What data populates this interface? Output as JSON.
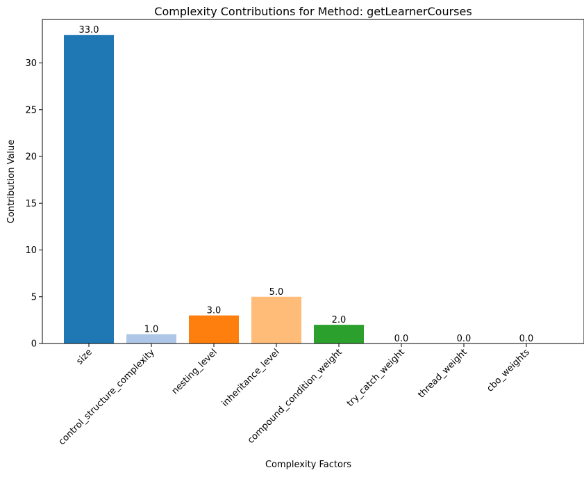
{
  "chart_data": {
    "type": "bar",
    "title": "Complexity Contributions for Method: getLearnerCourses",
    "xlabel": "Complexity Factors",
    "ylabel": "Contribution Value",
    "categories": [
      "size",
      "control_structure_complexity",
      "nesting_level",
      "inheritance_level",
      "compound_condition_weight",
      "try_catch_weight",
      "thread_weight",
      "cbo_weights"
    ],
    "values": [
      33.0,
      1.0,
      3.0,
      5.0,
      2.0,
      0.0,
      0.0,
      0.0
    ],
    "value_labels": [
      "33.0",
      "1.0",
      "3.0",
      "5.0",
      "2.0",
      "0.0",
      "0.0",
      "0.0"
    ],
    "colors": [
      "#1f77b4",
      "#aec7e8",
      "#ff7f0e",
      "#ffbb78",
      "#2ca02c",
      "#98df8a",
      "#d62728",
      "#ff9896"
    ],
    "yticks": [
      0,
      5,
      10,
      15,
      20,
      25,
      30
    ],
    "ylim": [
      0,
      34.65
    ],
    "grid": false,
    "legend": false
  }
}
